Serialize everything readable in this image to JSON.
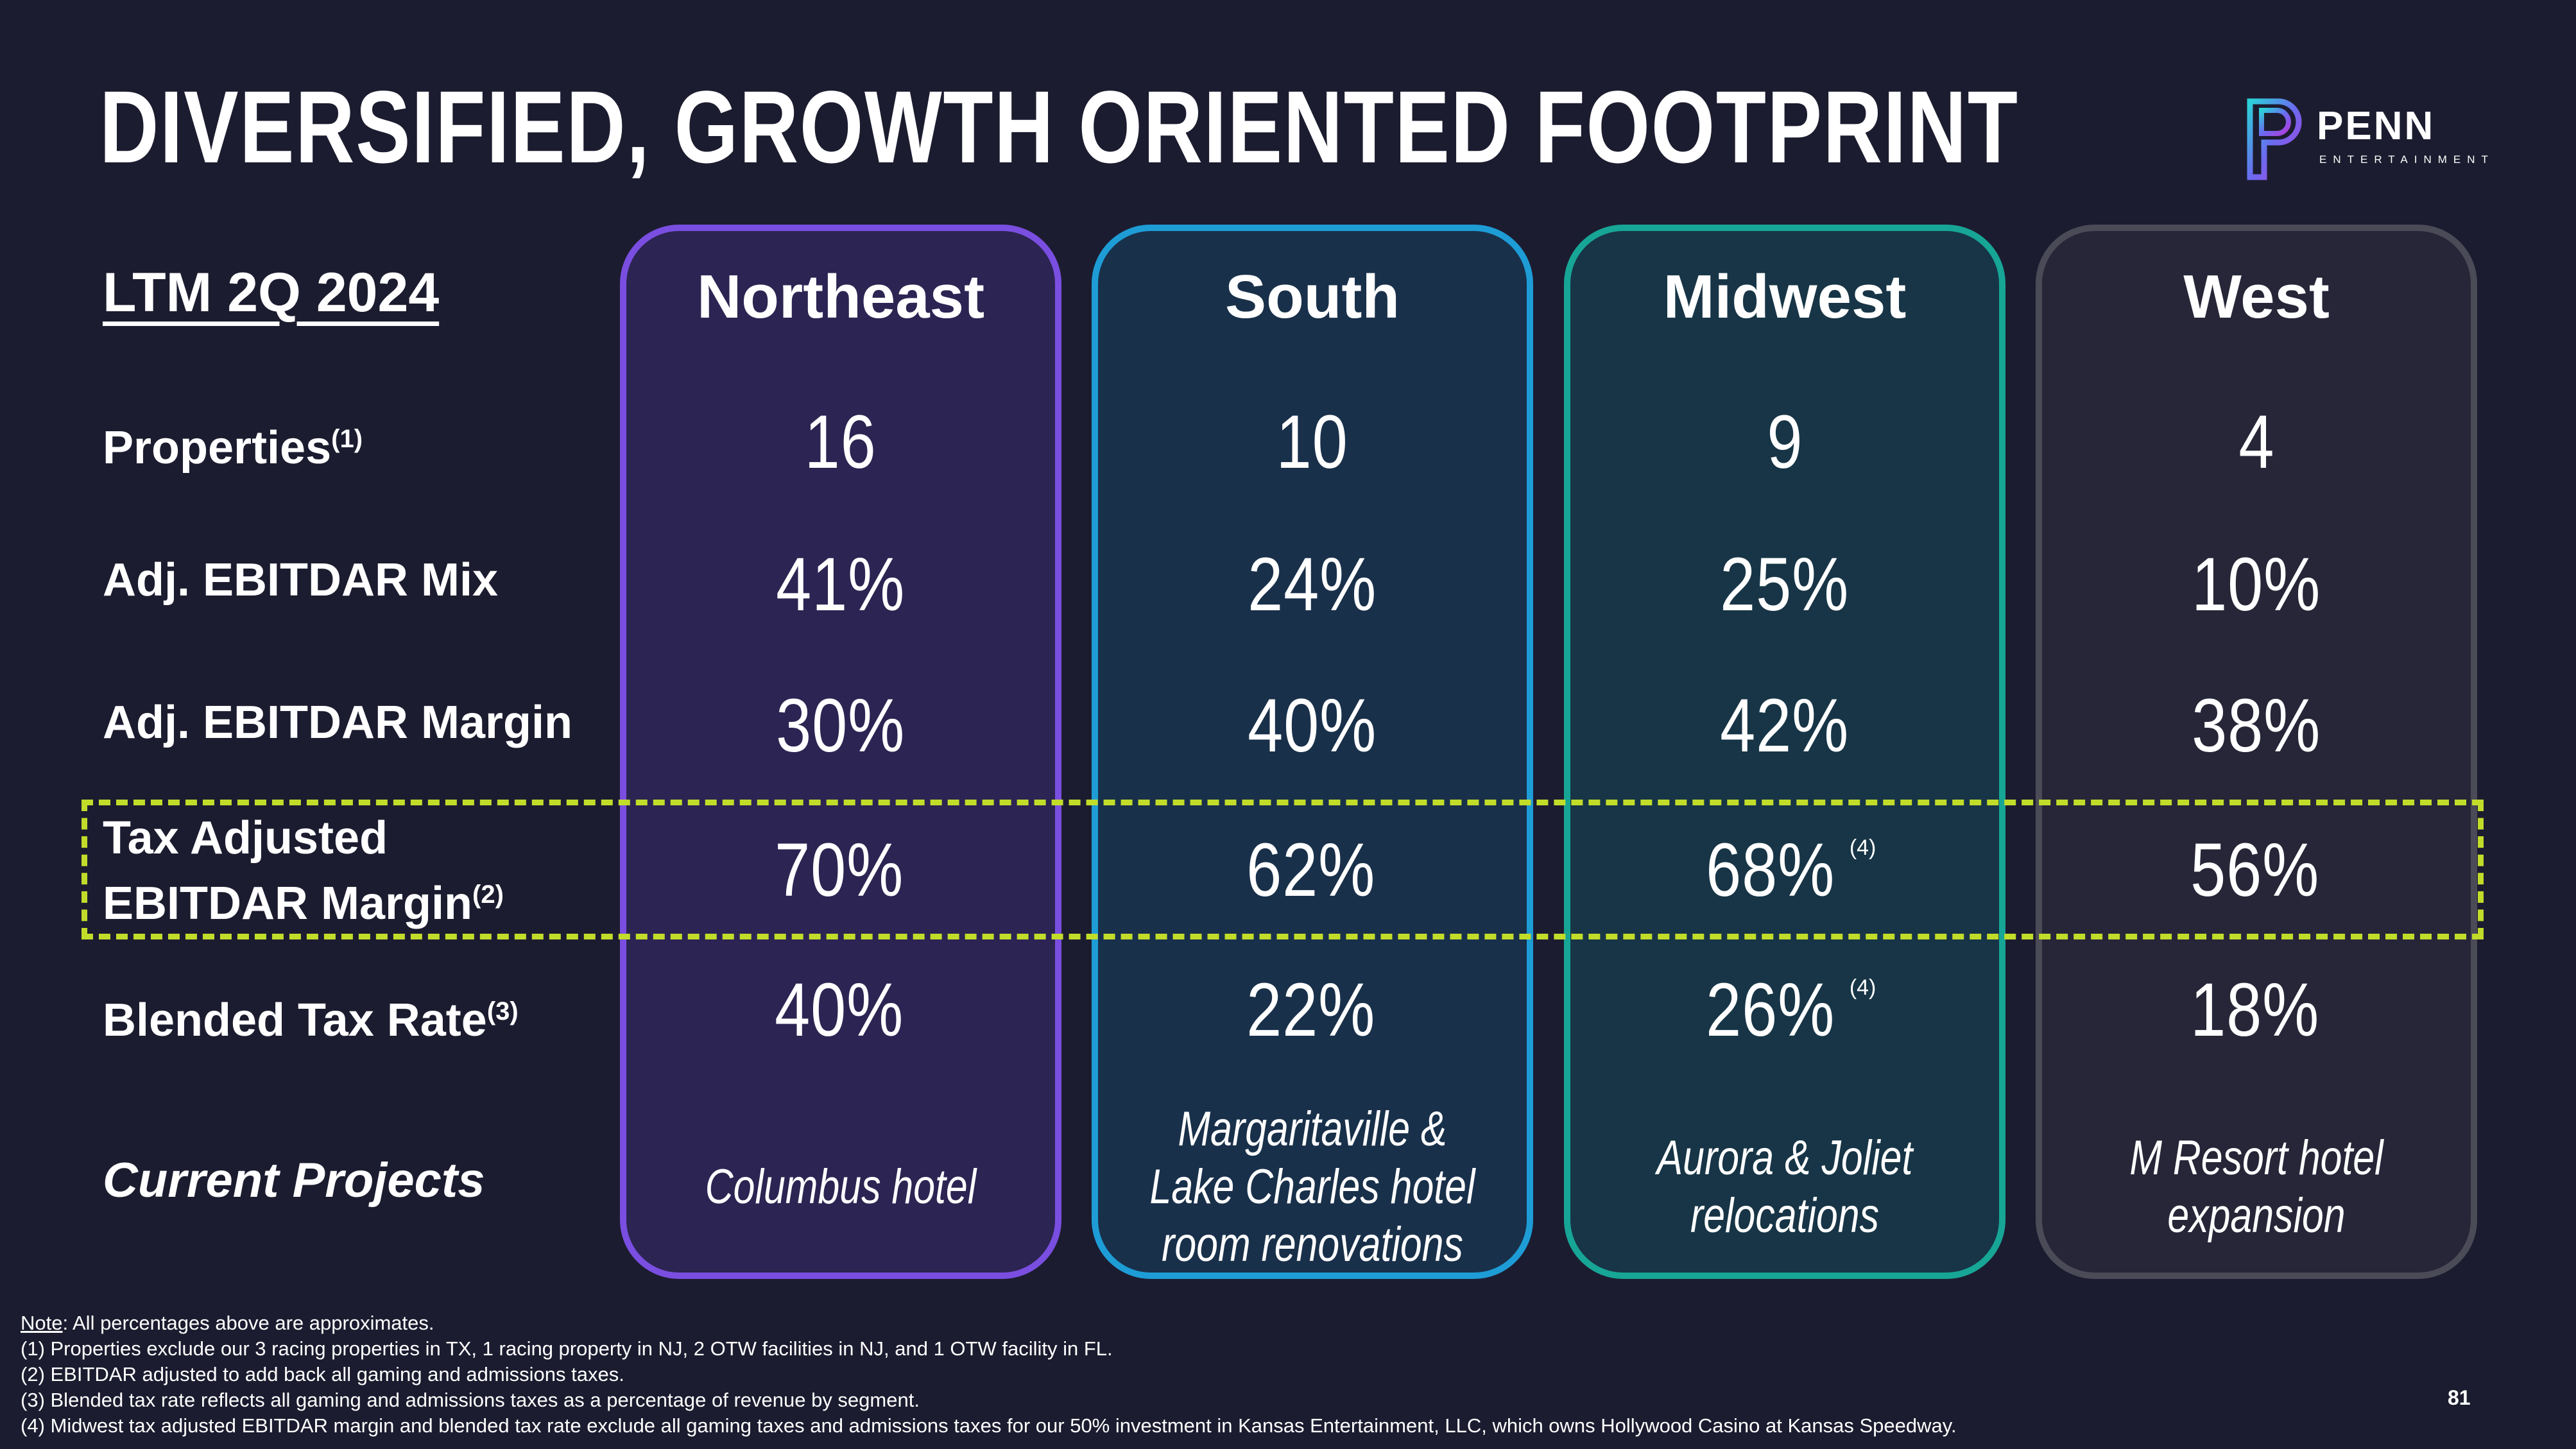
{
  "slide": {
    "title": "DIVERSIFIED, GROWTH ORIENTED FOOTPRINT",
    "logo": {
      "name": "PENN",
      "subtitle": "ENTERTAINMENT"
    },
    "period_label": "LTM 2Q 2024",
    "row_labels": {
      "properties": "Properties",
      "properties_sup": "(1)",
      "ebitdar_mix": "Adj. EBITDAR Mix",
      "ebitdar_margin": "Adj. EBITDAR Margin",
      "tax_adjusted_line1": "Tax Adjusted",
      "tax_adjusted_line2": "EBITDAR Margin",
      "tax_adjusted_sup": "(2)",
      "blended_tax": "Blended Tax Rate",
      "blended_tax_sup": "(3)",
      "current_projects": "Current Projects"
    },
    "regions": [
      {
        "name": "Northeast",
        "properties": "16",
        "ebitdar_mix": "41%",
        "ebitdar_margin": "30%",
        "tax_adjusted_margin": "70%",
        "tax_adjusted_sup": "",
        "blended_tax_rate": "40%",
        "blended_tax_sup": "",
        "project": "Columbus hotel"
      },
      {
        "name": "South",
        "properties": "10",
        "ebitdar_mix": "24%",
        "ebitdar_margin": "40%",
        "tax_adjusted_margin": "62%",
        "tax_adjusted_sup": "",
        "blended_tax_rate": "22%",
        "blended_tax_sup": "",
        "project": "Margaritaville & Lake Charles hotel room renovations"
      },
      {
        "name": "Midwest",
        "properties": "9",
        "ebitdar_mix": "25%",
        "ebitdar_margin": "42%",
        "tax_adjusted_margin": "68%",
        "tax_adjusted_sup": "(4)",
        "blended_tax_rate": "26%",
        "blended_tax_sup": "(4)",
        "project": "Aurora & Joliet relocations"
      },
      {
        "name": "West",
        "properties": "4",
        "ebitdar_mix": "10%",
        "ebitdar_margin": "38%",
        "tax_adjusted_margin": "56%",
        "tax_adjusted_sup": "",
        "blended_tax_rate": "18%",
        "blended_tax_sup": "",
        "project": "M Resort hotel expansion"
      }
    ],
    "notes": {
      "note_label": "Note",
      "note_text": ": All percentages above are approximates.",
      "lines": [
        "(1) Properties exclude our 3 racing properties in TX, 1 racing property in NJ, 2 OTW facilities in NJ, and 1 OTW facility in FL.",
        "(2) EBITDAR adjusted to add back all gaming and admissions taxes.",
        "(3) Blended tax rate reflects all gaming and admissions taxes as a percentage of revenue by segment.",
        "(4) Midwest tax adjusted EBITDAR margin and blended tax rate exclude all gaming taxes and admissions taxes for our 50% investment in Kansas Entertainment, LLC, which owns Hollywood Casino at Kansas Speedway."
      ]
    },
    "page_number": "81",
    "colors": {
      "background": "#1c1c30",
      "northeast": "#7a4ee0",
      "south": "#1e9cd6",
      "midwest": "#17a596",
      "west": "#4b4b58",
      "highlight": "#c2dc2a"
    }
  }
}
